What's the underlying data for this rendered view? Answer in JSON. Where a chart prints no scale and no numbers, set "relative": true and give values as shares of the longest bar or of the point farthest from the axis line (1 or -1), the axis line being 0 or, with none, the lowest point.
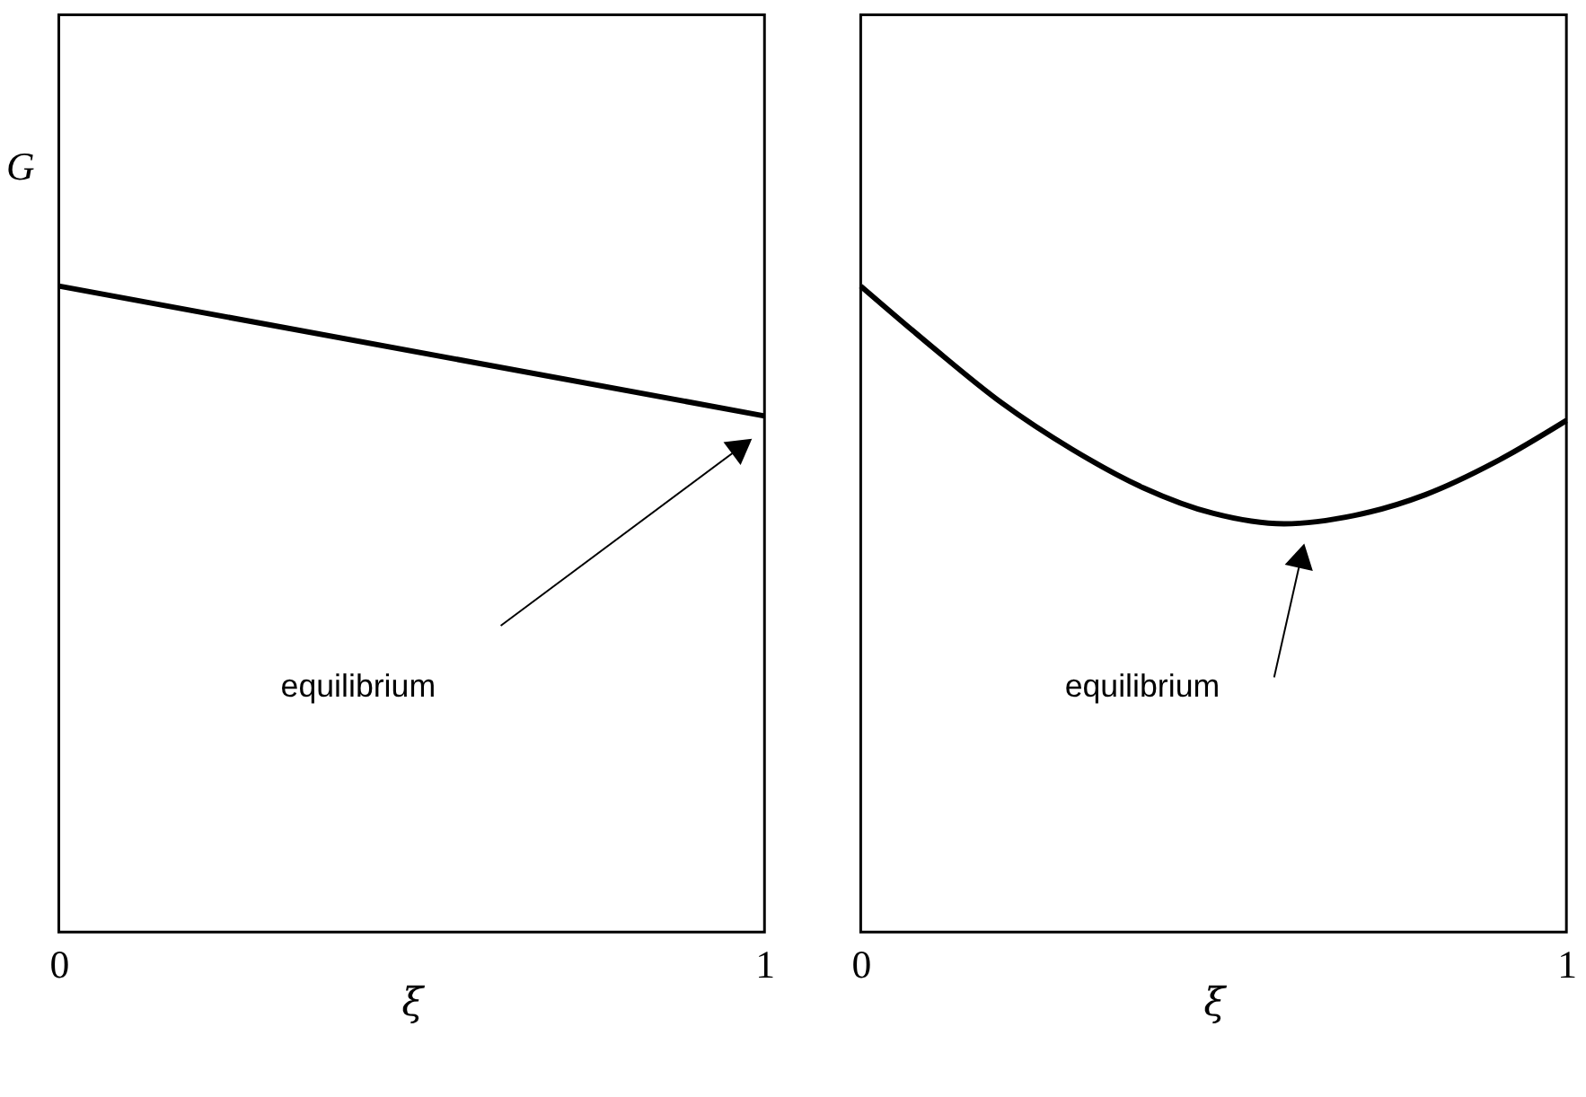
{
  "chart_data": [
    {
      "type": "line",
      "relative": true,
      "ylabel": "G",
      "xlabel": "ξ",
      "x": [
        0,
        1
      ],
      "xlim": [
        0,
        1
      ],
      "xticks": [
        0,
        1
      ],
      "tick_labels": "x",
      "grid": false,
      "legend": false,
      "marker": "none",
      "line_style": "solid",
      "series": [
        {
          "color": "#000000",
          "values": [
            1,
            0.799
          ]
        }
      ],
      "annotations": [
        "equilibrium"
      ]
    },
    {
      "type": "line",
      "relative": true,
      "xlabel": "ξ",
      "x": [
        0,
        0.1,
        0.2,
        0.3,
        0.4,
        0.5,
        0.6,
        0.7,
        0.8,
        0.9,
        1
      ],
      "xlim": [
        0,
        1
      ],
      "xticks": [
        0,
        1
      ],
      "tick_labels": "x",
      "grid": false,
      "legend": false,
      "marker": "none",
      "line_style": "solid",
      "series": [
        {
          "color": "#000000",
          "values": [
            1,
            0.907,
            0.819,
            0.747,
            0.688,
            0.648,
            0.632,
            0.645,
            0.677,
            0.728,
            0.792
          ]
        }
      ],
      "annotations": [
        "equilibrium"
      ]
    }
  ]
}
